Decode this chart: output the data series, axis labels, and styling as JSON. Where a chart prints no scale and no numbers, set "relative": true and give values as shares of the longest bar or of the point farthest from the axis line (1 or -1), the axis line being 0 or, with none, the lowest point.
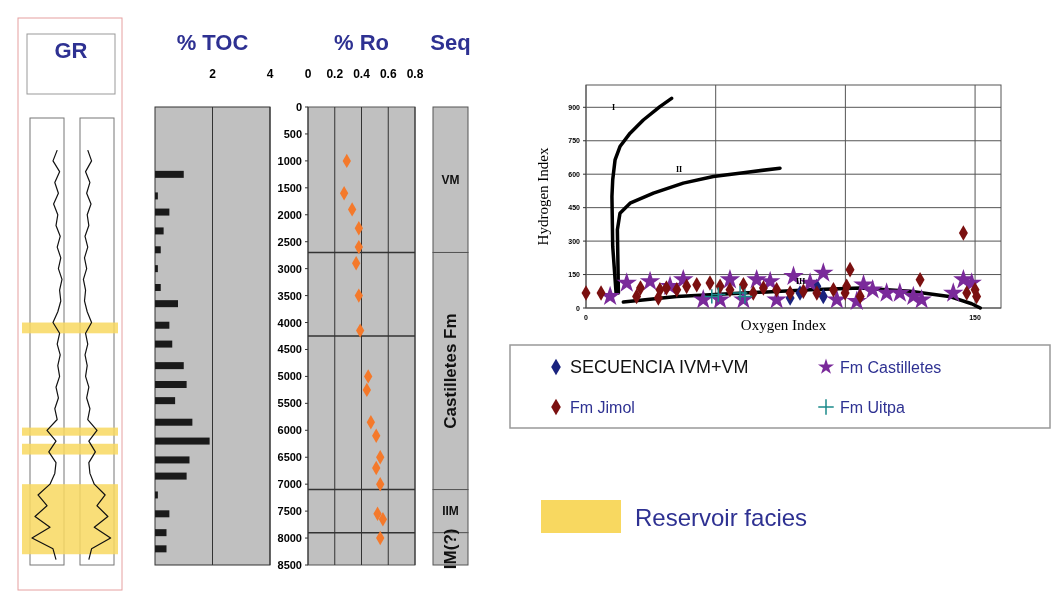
{
  "chart_data": [
    {
      "type": "line",
      "title": "GR",
      "orientation": "horizontal",
      "relative": true,
      "ylim": [
        8500,
        0
      ],
      "tick_labels": false,
      "series": [
        {
          "color": "#111111",
          "x": [
            800,
            1000,
            1200,
            1400,
            1600,
            1800,
            2000,
            2200,
            2400,
            2600,
            2800,
            3000,
            3200,
            3400,
            3600,
            3800,
            4000,
            4200,
            4400,
            4600,
            4800,
            5000,
            5200,
            5400,
            5600,
            5800,
            6000,
            6200,
            6400,
            6600,
            6800,
            7000,
            7200,
            7400,
            7600,
            7800,
            8000,
            8200,
            8400
          ],
          "values": [
            0.84,
            0.7,
            0.92,
            0.76,
            0.88,
            0.72,
            0.86,
            0.8,
            0.94,
            0.84,
            0.96,
            0.88,
            1,
            0.92,
            0.96,
            0.86,
            0.7,
            0.92,
            0.84,
            0.94,
            0.86,
            0.92,
            0.8,
            0.88,
            0.76,
            0.84,
            0.5,
            0.8,
            0.56,
            0.8,
            0.76,
            0.6,
            0.2,
            0.5,
            0.1,
            0.6,
            0,
            0.7,
            0.8
          ]
        }
      ],
      "bands": [
        {
          "axis": "y",
          "from": 4000,
          "to": 4200,
          "color": "#f8d860",
          "label": "Reservoir facies"
        },
        {
          "axis": "y",
          "from": 5950,
          "to": 6100,
          "color": "#f8d860"
        },
        {
          "axis": "y",
          "from": 6250,
          "to": 6450,
          "color": "#f8d860"
        },
        {
          "axis": "y",
          "from": 7000,
          "to": 8300,
          "color": "#f8d860"
        }
      ]
    },
    {
      "type": "bar",
      "title": "% TOC",
      "orientation": "horizontal",
      "xlim": [
        0,
        4
      ],
      "xticks": [
        2,
        4
      ],
      "ylim": [
        8500,
        0
      ],
      "tick_labels": "x",
      "grid": "x",
      "series": [
        {
          "color": "#1a1a1a",
          "x": [
            1250,
            1650,
            1950,
            2300,
            2650,
            3000,
            3350,
            3650,
            4050,
            4400,
            4800,
            5150,
            5450,
            5850,
            6200,
            6550,
            6850,
            7200,
            7550,
            7900,
            8200
          ],
          "values": [
            1.0,
            0.1,
            0.5,
            0.3,
            0.2,
            0.1,
            0.2,
            0.8,
            0.5,
            0.6,
            1.0,
            1.1,
            0.7,
            1.3,
            1.9,
            1.2,
            1.1,
            0.1,
            0.5,
            0.4,
            0.4
          ]
        }
      ]
    },
    {
      "type": "scatter",
      "title": "% Ro",
      "xlim": [
        0,
        0.8
      ],
      "xticks": [
        0,
        0.2,
        0.4,
        0.6,
        0.8
      ],
      "ylim": [
        8500,
        0
      ],
      "yticks": [
        0,
        500,
        1000,
        1500,
        2000,
        2500,
        3000,
        3500,
        4000,
        4500,
        5000,
        5500,
        6000,
        6500,
        7000,
        7500,
        8000,
        8500
      ],
      "grid": "x",
      "marker": "diamond",
      "series": [
        {
          "color": "#f4792b",
          "x": [
            0.29,
            0.27,
            0.33,
            0.38,
            0.38,
            0.36,
            0.38,
            0.39,
            0.45,
            0.44,
            0.47,
            0.51,
            0.54,
            0.51,
            0.54,
            0.52,
            0.56,
            0.54
          ],
          "values": [
            1000,
            1600,
            1900,
            2250,
            2600,
            2900,
            3500,
            4150,
            5000,
            5250,
            5850,
            6100,
            6500,
            6700,
            7000,
            7550,
            7650,
            8000
          ]
        }
      ],
      "ref_lines": [
        {
          "axis": "y",
          "value": 2700,
          "color": "#333333"
        },
        {
          "axis": "y",
          "value": 4250,
          "color": "#333333"
        },
        {
          "axis": "y",
          "value": 7100,
          "color": "#333333"
        },
        {
          "axis": "y",
          "value": 7900,
          "color": "#333333"
        }
      ]
    },
    {
      "type": "bar",
      "title": "Seq",
      "stacked": true,
      "categories": [
        null
      ],
      "ylim": [
        8500,
        0
      ],
      "tick_labels": false,
      "series": [
        {
          "name": "VM",
          "color": "#c0c0c0",
          "values": [
            2700
          ]
        },
        {
          "name": "Castilletes Fm",
          "color": "#c0c0c0",
          "values": [
            4400
          ]
        },
        {
          "name": "IIM",
          "color": "#c0c0c0",
          "values": [
            800
          ]
        },
        {
          "name": "IM(?)",
          "color": "#c0c0c0",
          "values": [
            600
          ]
        }
      ]
    },
    {
      "type": "scatter",
      "xlabel": "Oxygen Index",
      "ylabel": "Hydrogen Index",
      "xlim": [
        0,
        160
      ],
      "xticks": [
        0,
        {
          "value": 50,
          "label": null
        },
        {
          "value": 100,
          "label": null
        },
        150
      ],
      "ylim": [
        0,
        1000
      ],
      "yticks": [
        0,
        150,
        300,
        450,
        600,
        750,
        900
      ],
      "grid": true,
      "legend": "bottom",
      "series": [
        {
          "name": "SECUENCIA IVM+VM",
          "color": "#1a237e",
          "marker": "diamond",
          "x": [
            78.7,
            82.5,
            89,
            91.5
          ],
          "values": [
            45,
            67,
            97,
            52
          ]
        },
        {
          "name": "Fm Castilletes",
          "color": "#7a2a9a",
          "marker": "star",
          "x": [
            9.3,
            15.7,
            24.7,
            32.4,
            37.5,
            45.2,
            51.7,
            55.5,
            60.7,
            65.8,
            71,
            73.5,
            80,
            86.4,
            91.5,
            96.7,
            104.4,
            107,
            110.5,
            115.9,
            121,
            126.2,
            129.4,
            141.6,
            145.5,
            148.7
          ],
          "values": [
            52,
            112,
            119,
            97,
            127,
            37,
            37,
            127,
            37,
            127,
            119,
            37,
            142,
            112,
            157,
            37,
            30,
            104,
            82,
            67,
            67,
            52,
            37,
            67,
            127,
            112
          ]
        },
        {
          "name": "Fm Jimol",
          "color": "#7b1010",
          "marker": "diamond",
          "x": [
            0,
            5.8,
            19.5,
            21,
            27.9,
            28.5,
            31,
            35,
            38.8,
            42.7,
            47.8,
            51.7,
            55.5,
            60.7,
            64.5,
            68.4,
            73.5,
            78.7,
            83.8,
            89,
            95.4,
            99.9,
            100.5,
            101.8,
            105.7,
            128.8,
            145.5,
            146.8,
            150,
            150.6
          ],
          "values": [
            67,
            67,
            52,
            90,
            45,
            82,
            90,
            82,
            97,
            104,
            112,
            97,
            82,
            104,
            67,
            90,
            82,
            67,
            75,
            67,
            82,
            67,
            97,
            172,
            52,
            127,
            336,
            67,
            82,
            52
          ]
        },
        {
          "name": "Fm Uitpa",
          "color": "#1b8a8a",
          "marker": "cross",
          "x": [
            48.5,
            51,
            59.4,
            61.3
          ],
          "values": [
            52,
            60,
            67,
            52
          ]
        },
        {
          "type": "line",
          "color": "#000000",
          "x": [
            11.6,
            10.3,
            10,
            10.3,
            11.2,
            13.1,
            17,
            22.1,
            28.5,
            33
          ],
          "values": [
            67,
            276,
            500,
            575,
            664,
            724,
            784,
            843,
            903,
            940
          ]
        },
        {
          "type": "line",
          "color": "#000000",
          "x": [
            12.5,
            12.1,
            13.1,
            17,
            26,
            37.5,
            49.1,
            60.7,
            74.8
          ],
          "values": [
            67,
            351,
            425,
            470,
            515,
            560,
            590,
            607,
            627
          ]
        },
        {
          "type": "line",
          "color": "#000000",
          "x": [
            14.4,
            35,
            60.7,
            86.4,
            105.7,
            125,
            140,
            148.7,
            152
          ],
          "values": [
            27,
            52,
            67,
            82,
            90,
            75,
            52,
            19,
            0
          ]
        }
      ],
      "annotations": [
        "I",
        "II",
        "III"
      ]
    }
  ]
}
